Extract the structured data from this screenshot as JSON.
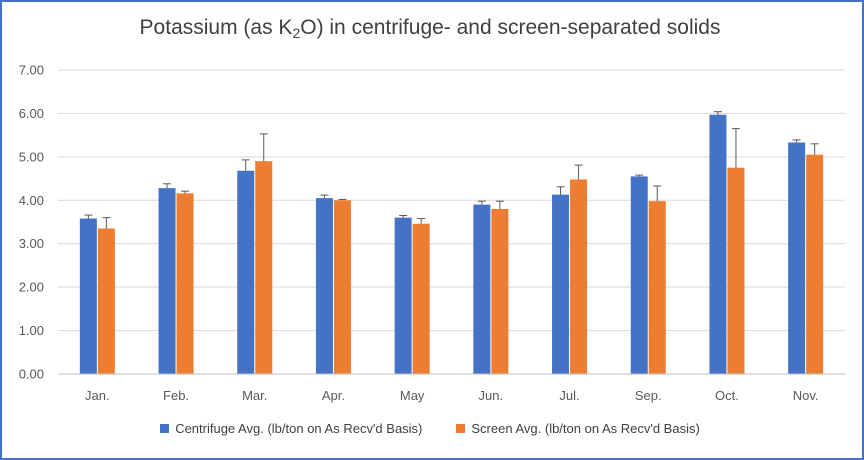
{
  "chart_data": {
    "type": "bar",
    "title_parts": {
      "pre": "Potassium (as K",
      "sub": "2",
      "post": "O) in centrifuge- and screen-separated solids"
    },
    "categories": [
      "Jan.",
      "Feb.",
      "Mar.",
      "Apr.",
      "May",
      "Jun.",
      "Jul.",
      "Sep.",
      "Oct.",
      "Nov."
    ],
    "ylim": [
      0,
      7
    ],
    "yticks": [
      "0.00",
      "1.00",
      "2.00",
      "3.00",
      "4.00",
      "5.00",
      "6.00",
      "7.00"
    ],
    "grid": true,
    "legend_position": "bottom",
    "series": [
      {
        "name": "Centrifuge Avg. (lb/ton on As Recv'd Basis)",
        "color": "#4472C4",
        "values": [
          3.58,
          4.28,
          4.68,
          4.05,
          3.6,
          3.9,
          4.13,
          4.55,
          5.97,
          5.33
        ],
        "error": [
          0.08,
          0.1,
          0.25,
          0.07,
          0.05,
          0.08,
          0.18,
          0.03,
          0.07,
          0.06
        ]
      },
      {
        "name": "Screen Avg. (lb/ton on As Recv'd Basis)",
        "color": "#ED7D31",
        "values": [
          3.35,
          4.16,
          4.9,
          4.0,
          3.46,
          3.8,
          4.48,
          3.98,
          4.75,
          5.05
        ],
        "error": [
          0.25,
          0.05,
          0.63,
          0.02,
          0.12,
          0.18,
          0.33,
          0.35,
          0.9,
          0.25
        ]
      }
    ]
  }
}
